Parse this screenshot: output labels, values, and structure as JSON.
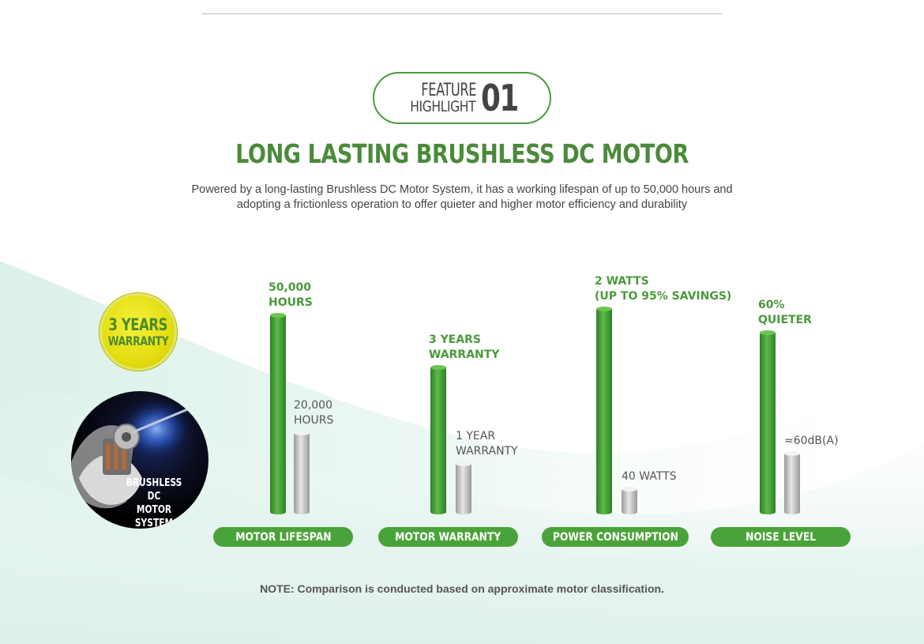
{
  "badge": {
    "word1": "FEATURE",
    "word2": "HIGHLIGHT",
    "number": "01"
  },
  "headline": "LONG LASTING BRUSHLESS DC MOTOR",
  "description": {
    "line1": "Powered by a long-lasting Brushless DC Motor System, it has a working lifespan of up to 50,000 hours and",
    "line2": "adopting a frictionless operation to offer quieter and higher motor efficiency and durability"
  },
  "warranty_seal": {
    "line1": "3 YEARS",
    "line2": "WARRANTY"
  },
  "motor_image": {
    "line1": "BRUSHLESS DC",
    "line2": "MOTOR SYSTEM"
  },
  "colors": {
    "green": "#4aa33a",
    "headline_green": "#4a8a3a",
    "grey_bar": "#cfcfcf",
    "seal_yellow": "#e4dc10"
  },
  "chart_data": [
    {
      "type": "bar",
      "category": "MOTOR LIFESPAN",
      "series": [
        {
          "values": [
            50000
          ],
          "label": [
            "50,000",
            "HOURS"
          ]
        },
        {
          "values": [
            20000
          ],
          "label": [
            "20,000",
            "HOURS"
          ]
        }
      ]
    },
    {
      "type": "bar",
      "category": "MOTOR WARRANTY",
      "series": [
        {
          "values": [
            3
          ],
          "label": [
            "3 YEARS",
            "WARRANTY"
          ]
        },
        {
          "values": [
            1
          ],
          "label": [
            "1 YEAR",
            "WARRANTY"
          ]
        }
      ]
    },
    {
      "type": "bar",
      "category": "POWER CONSUMPTION",
      "series": [
        {
          "values": [
            2
          ],
          "label": [
            "2 WATTS",
            "(UP TO 95% SAVINGS)"
          ]
        },
        {
          "values": [
            40
          ],
          "label": [
            "40 WATTS"
          ]
        }
      ]
    },
    {
      "type": "bar",
      "category": "NOISE LEVEL",
      "series": [
        {
          "values": [
            60
          ],
          "label": [
            "60%",
            "QUIETER"
          ]
        },
        {
          "values": [
            60
          ],
          "label": [
            "≈60dB(A)"
          ]
        }
      ]
    }
  ],
  "note": "NOTE: Comparison is conducted based on approximate motor classification."
}
